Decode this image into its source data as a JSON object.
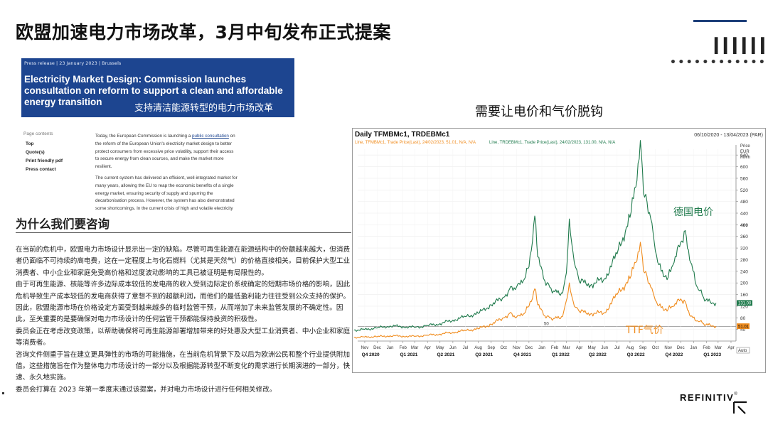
{
  "slide": {
    "title": "欧盟加速电力市场改革，3月中旬发布正式提案",
    "logo": "REFINITIV",
    "logo_mark": "®"
  },
  "press_release": {
    "meta": "Press release  |  23 January 2023  |  Brussels",
    "headline": "Electricity Market Design: Commission launches consultation on reform to support a clean and affordable energy transition",
    "headline_cn": "支持清洁能源转型的电力市场改革",
    "page_contents_title": "Page contents",
    "page_contents_links": [
      "Top",
      "Quote(s)",
      "Print friendly pdf",
      "Press contact"
    ],
    "body_p1_pre": "Today, the European Commission is launching a ",
    "body_p1_link": "public consultation",
    "body_p1_post": " on the reform of the European Union's electricity market design to better protect consumers from excessive price volatility, support their access to secure energy from clean sources, and make the market more resilient.",
    "body_p2": "The current system has delivered an efficient, well-integrated market for many years, allowing the EU to reap the economic benefits of a single energy market, ensuring security of supply and spurring the decarbonisation process. However, the system has also demonstrated some shortcomings. In the current crisis of high and volatile electricity"
  },
  "consultation": {
    "heading": "为什么我们要咨询",
    "paragraphs": [
      "在当前的危机中，欧盟电力市场设计显示出一定的缺陷。尽管可再生能源在能源结构中的份额越来越大，但消费者仍面临不可持续的高电费，这在一定程度上与化石燃料（尤其是天然气）的价格直接相关。目前保护大型工业消费者、中小企业和家庭免受高价格和过度波动影响的工具已被证明是有局限性的。",
      "由于可再生能源、核能等许多边际成本较低的发电商的收入受到边际定价系统确定的短期市场价格的影响，因此危机导致生产成本较低的发电商获得了意想不到的超额利润，而他们的最低盈利能力往往受到公众支持的保护。",
      "因此，欧盟能源市场在价格设定方面受到越来越多的临时监管干预，从而增加了未来监管发展的不确定性。因此，至关重要的是要确保对电力市场设计的任何监管干预都能保持投资的积极性。",
      "委员会正在考虑改变政策，以帮助确保将可再生能源部署增加带来的好处惠及大型工业消费者、中小企业和家庭等消费者。",
      "咨询文件侧重于旨在建立更具弹性的市场的可能措施，在当前危机背景下及以后为欧洲公民和整个行业提供附加值。这些措施旨在作为整体电力市场设计的一部分以及根据能源转型不断变化的需求进行长期演进的一部分，快速、永久地实施。",
      "委员会打算在 2023 年第一季度末通过该提案，并对电力市场设计进行任何相关修改。"
    ]
  },
  "chart_header": {
    "subtitle": "需要让电价和气价脱钩",
    "title": "Daily TFMBMc1, TRDEBMc1",
    "date_range": "06/10/2020 - 13/04/2023 (PAR)",
    "legend_line1": "Line, TFMBMc1, Trade Price(Last), 24/02/2023, 51.01, N/A, N/A",
    "legend_line2": "Line, TRDEBMc1, Trade Price(Last), 24/02/2023, 131.00, N/A, N/A",
    "label_de": "德国电价",
    "label_ttf": "TTF气价",
    "unit_lines": [
      "Price",
      "EUR",
      "MWh"
    ],
    "auto_label": "Auto",
    "last_de_label": "131.00",
    "last_ttf_label": "51.01",
    "ref_line_label": "50"
  },
  "chart_data": {
    "type": "line",
    "ylabel": "Price EUR MWh",
    "ylim": [
      0,
      660
    ],
    "yticks": [
      40,
      80,
      120,
      160,
      200,
      240,
      280,
      320,
      360,
      400,
      440,
      480,
      520,
      560,
      600,
      640
    ],
    "hline": 50,
    "x_month_ticks": [
      "Nov",
      "Dec",
      "Jan",
      "Feb",
      "Mar",
      "Apr",
      "May",
      "Jun",
      "Jul",
      "Aug",
      "Sep",
      "Oct",
      "Nov",
      "Dec",
      "Jan",
      "Feb",
      "Mar",
      "Apr",
      "May",
      "Jun",
      "Jul",
      "Aug",
      "Sep",
      "Oct",
      "Nov",
      "Dec",
      "Jan",
      "Feb",
      "Mar",
      "Apr"
    ],
    "x_quarter_ticks": [
      "Q4 2020",
      "Q1 2021",
      "Q2 2021",
      "Q3 2021",
      "Q4 2021",
      "Q1 2022",
      "Q2 2022",
      "Q3 2022",
      "Q4 2022",
      "Q1 2023"
    ],
    "series": [
      {
        "name": "TRDEBMc1",
        "color": "#1f7a4c",
        "x": [
          "2020-10-06",
          "2020-11-01",
          "2020-12-01",
          "2021-01-01",
          "2021-02-01",
          "2021-03-01",
          "2021-04-01",
          "2021-05-01",
          "2021-06-01",
          "2021-07-01",
          "2021-08-01",
          "2021-09-01",
          "2021-10-01",
          "2021-10-15",
          "2021-11-01",
          "2021-11-15",
          "2021-12-01",
          "2021-12-15",
          "2021-12-22",
          "2022-01-05",
          "2022-01-20",
          "2022-02-01",
          "2022-02-20",
          "2022-03-01",
          "2022-03-08",
          "2022-03-20",
          "2022-04-01",
          "2022-05-01",
          "2022-06-01",
          "2022-07-01",
          "2022-08-01",
          "2022-08-15",
          "2022-08-26",
          "2022-09-05",
          "2022-09-20",
          "2022-10-01",
          "2022-10-15",
          "2022-11-01",
          "2022-11-15",
          "2022-12-01",
          "2022-12-12",
          "2022-12-25",
          "2023-01-10",
          "2023-01-25",
          "2023-02-10",
          "2023-02-24"
        ],
        "y": [
          38,
          40,
          45,
          52,
          50,
          47,
          53,
          60,
          72,
          84,
          95,
          125,
          150,
          178,
          185,
          200,
          255,
          430,
          290,
          215,
          185,
          170,
          165,
          235,
          420,
          270,
          205,
          195,
          215,
          300,
          425,
          530,
          690,
          495,
          420,
          310,
          240,
          220,
          270,
          340,
          380,
          270,
          185,
          150,
          135,
          131
        ]
      },
      {
        "name": "TFMBMc1",
        "color": "#f08c1e",
        "x": [
          "2020-10-06",
          "2020-11-01",
          "2020-12-01",
          "2021-01-01",
          "2021-02-01",
          "2021-03-01",
          "2021-04-01",
          "2021-05-01",
          "2021-06-01",
          "2021-07-01",
          "2021-08-01",
          "2021-09-01",
          "2021-10-01",
          "2021-10-15",
          "2021-11-01",
          "2021-11-15",
          "2021-12-01",
          "2021-12-15",
          "2021-12-22",
          "2022-01-05",
          "2022-01-20",
          "2022-02-01",
          "2022-02-20",
          "2022-03-01",
          "2022-03-08",
          "2022-03-20",
          "2022-04-01",
          "2022-05-01",
          "2022-06-01",
          "2022-07-01",
          "2022-08-01",
          "2022-08-15",
          "2022-08-26",
          "2022-09-05",
          "2022-09-20",
          "2022-10-01",
          "2022-10-15",
          "2022-11-01",
          "2022-11-15",
          "2022-12-01",
          "2022-12-12",
          "2022-12-25",
          "2023-01-10",
          "2023-01-25",
          "2023-02-10",
          "2023-02-24"
        ],
        "y": [
          13,
          14,
          15,
          18,
          17,
          16,
          20,
          24,
          30,
          36,
          42,
          58,
          80,
          95,
          82,
          88,
          120,
          180,
          125,
          90,
          80,
          78,
          85,
          140,
          200,
          120,
          102,
          95,
          98,
          160,
          215,
          270,
          340,
          235,
          185,
          140,
          115,
          110,
          120,
          145,
          135,
          85,
          70,
          60,
          55,
          51
        ]
      }
    ]
  }
}
